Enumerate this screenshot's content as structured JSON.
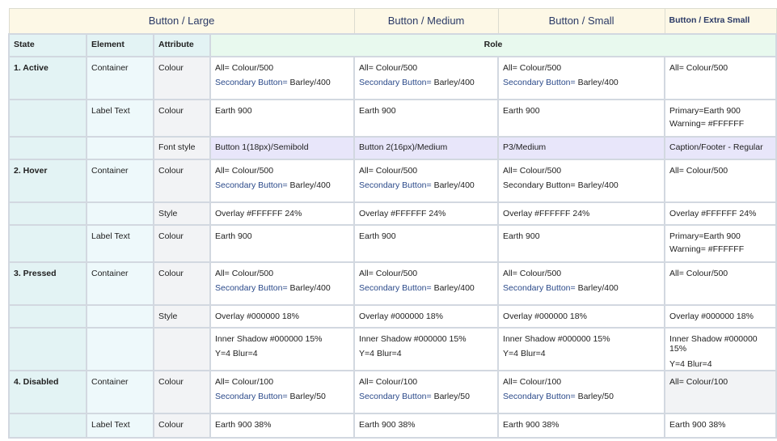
{
  "top": {
    "large": "Button / Large",
    "medium": "Button / Medium",
    "small": "Button / Small",
    "xsmall": "Button / Extra Small"
  },
  "header": {
    "state": "State",
    "element": "Element",
    "attribute": "Attribute",
    "role": "Role"
  },
  "rows": [
    {
      "state": "1. Active",
      "element": "Container",
      "attribute": "Colour",
      "large": [
        "All= Colour/500",
        "Secondary Button=",
        " Barley/400"
      ],
      "medium": [
        "All= Colour/500",
        "Secondary Button=",
        " Barley/400"
      ],
      "small": [
        "All= Colour/500",
        "Secondary Button=",
        " Barley/400"
      ],
      "xsmall": [
        "All= Colour/500"
      ]
    },
    {
      "state": "",
      "element": "Label Text",
      "attribute": "Colour",
      "large": [
        "Earth 900"
      ],
      "medium": [
        "Earth 900"
      ],
      "small": [
        "Earth 900"
      ],
      "xsmall": [
        "Primary=Earth 900",
        "Warning= #FFFFFF"
      ]
    },
    {
      "state": "",
      "element": "",
      "attribute": "Font style",
      "large": [
        "Button 1(18px)/Semibold"
      ],
      "medium": [
        "Button 2(16px)/Medium"
      ],
      "small": [
        "P3/Medium"
      ],
      "xsmall": [
        "Caption/Footer - Regular"
      ]
    },
    {
      "state": "2. Hover",
      "element": "Container",
      "attribute": "Colour",
      "large": [
        "All= Colour/500",
        "Secondary Button=",
        " Barley/400"
      ],
      "medium": [
        "All= Colour/500",
        "Secondary Button=",
        " Barley/400"
      ],
      "small": [
        "All= Colour/500",
        "Secondary Button= Barley/400"
      ],
      "xsmall": [
        "All= Colour/500"
      ]
    },
    {
      "state": "",
      "element": "",
      "attribute": "Style",
      "large": [
        "Overlay #FFFFFF 24%"
      ],
      "medium": [
        "Overlay #FFFFFF 24%"
      ],
      "small": [
        "Overlay #FFFFFF 24%"
      ],
      "xsmall": [
        "Overlay #FFFFFF 24%"
      ]
    },
    {
      "state": "",
      "element": "Label Text",
      "attribute": "Colour",
      "large": [
        "Earth 900"
      ],
      "medium": [
        "Earth 900"
      ],
      "small": [
        "Earth 900"
      ],
      "xsmall": [
        "Primary=Earth 900",
        "Warning= #FFFFFF"
      ]
    },
    {
      "state": "3. Pressed",
      "element": "Container",
      "attribute": "Colour",
      "large": [
        "All= Colour/500",
        "Secondary Button=",
        " Barley/400"
      ],
      "medium": [
        "All= Colour/500",
        "Secondary Button=",
        " Barley/400"
      ],
      "small": [
        "All= Colour/500",
        "Secondary Button=",
        " Barley/400"
      ],
      "xsmall": [
        "All= Colour/500"
      ]
    },
    {
      "state": "",
      "element": "",
      "attribute": "Style",
      "large": [
        "Overlay #000000 18%"
      ],
      "medium": [
        "Overlay #000000 18%"
      ],
      "small": [
        "Overlay #000000 18%"
      ],
      "xsmall": [
        "Overlay #000000 18%"
      ]
    },
    {
      "state": "",
      "element": "",
      "attribute": "",
      "large": [
        "Inner Shadow #000000 15%",
        "Y=4 Blur=4"
      ],
      "medium": [
        "Inner Shadow #000000 15%",
        "Y=4 Blur=4"
      ],
      "small": [
        "Inner Shadow #000000 15%",
        "Y=4 Blur=4"
      ],
      "xsmall": [
        "Inner Shadow #000000 15%",
        "Y=4 Blur=4"
      ]
    },
    {
      "state": "4. Disabled",
      "element": "Container",
      "attribute": "Colour",
      "large": [
        "All= Colour/100",
        "Secondary Button=",
        " Barley/50"
      ],
      "medium": [
        "All= Colour/100",
        "Secondary Button=",
        " Barley/50"
      ],
      "small": [
        "All= Colour/100",
        "Secondary Button=",
        " Barley/50"
      ],
      "xsmall": [
        "All= Colour/100"
      ]
    },
    {
      "state": "",
      "element": "Label Text",
      "attribute": "Colour",
      "large": [
        "Earth 900 38%"
      ],
      "medium": [
        "Earth 900 38%"
      ],
      "small": [
        "Earth 900 38%"
      ],
      "xsmall": [
        "Earth 900 38%"
      ]
    }
  ]
}
